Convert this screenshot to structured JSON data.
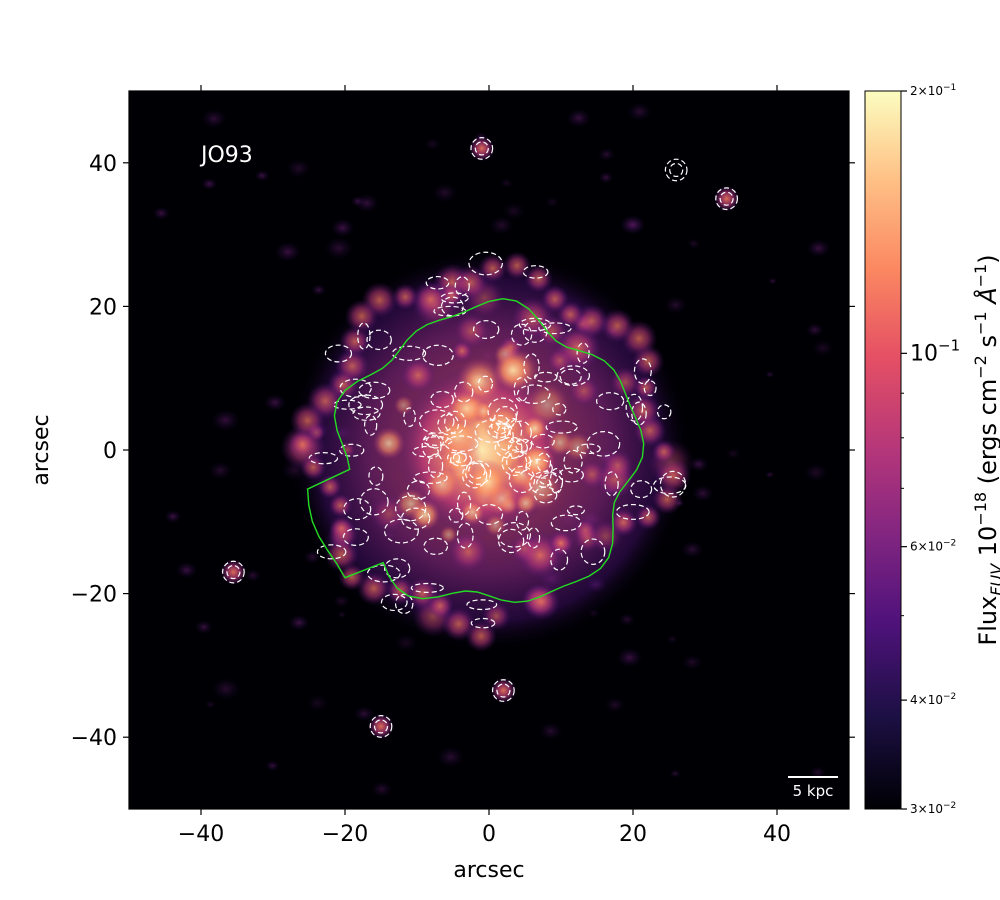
{
  "chart_data": {
    "type": "heatmap",
    "object_label": "JO93",
    "xlabel": "arcsec",
    "ylabel": "arcsec",
    "xlim": [
      -50,
      50
    ],
    "ylim": [
      -50,
      50
    ],
    "x_ticks": [
      {
        "value": -40,
        "label": "−40"
      },
      {
        "value": -20,
        "label": "−20"
      },
      {
        "value": 0,
        "label": "0"
      },
      {
        "value": 20,
        "label": "20"
      },
      {
        "value": 40,
        "label": "40"
      }
    ],
    "y_ticks": [
      {
        "value": -40,
        "label": "−40"
      },
      {
        "value": -20,
        "label": "−20"
      },
      {
        "value": 0,
        "label": "0"
      },
      {
        "value": 20,
        "label": "20"
      },
      {
        "value": 40,
        "label": "40"
      }
    ],
    "scalebar_label": "5 kpc",
    "colormap": "magma",
    "colorbar": {
      "scale": "log",
      "range": [
        0.03,
        0.2
      ],
      "major_ticks": [
        {
          "value": 0.2,
          "label_base": "2×10",
          "label_exp": "−1"
        },
        {
          "value": 0.1,
          "label_base": "10",
          "label_exp": "−1"
        },
        {
          "value": 0.06,
          "label_base": "6×10",
          "label_exp": "−2"
        },
        {
          "value": 0.04,
          "label_base": "4×10",
          "label_exp": "−2"
        },
        {
          "value": 0.03,
          "label_base": "3×10",
          "label_exp": "−2"
        }
      ],
      "minor_ticks": [
        0.05,
        0.07,
        0.08,
        0.09
      ],
      "label": "Flux_FUV 10^−18 (ergs cm^−2 s^−1 Å^−1)"
    },
    "colorbar_label_parts": {
      "flux": "Flux",
      "flux_sub": "FUV",
      "scale": " 10",
      "scale_exp": "−18",
      "units_open": " (ergs cm",
      "cm_exp": "−2",
      "s": " s",
      "s_exp": "−1",
      "angstrom": " Å",
      "a_exp": "−1",
      "close": ")"
    },
    "overlays": {
      "green_contour": "galaxy stellar disk outline",
      "white_dashed_contours": "emission contours"
    },
    "colors": {
      "background": "#000004",
      "green_contour": "#22dd22",
      "white_contour": "#ffffff"
    }
  }
}
